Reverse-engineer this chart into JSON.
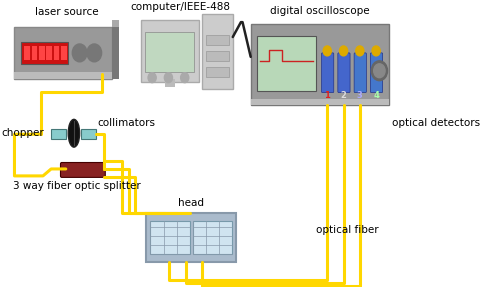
{
  "bg_color": "#ffffff",
  "fiber_color": "#FFD700",
  "fiber_lw": 2.2,
  "labels": {
    "laser_source": "laser source",
    "computer": "computer/IEEE-488",
    "oscilloscope": "digital oscilloscope",
    "chopper": "chopper",
    "collimators": "collimators",
    "splitter": "3 way fiber optic splitter",
    "head": "head",
    "optical_detectors": "optical detectors",
    "optical_fiber": "optical fiber"
  },
  "font_size": 7.5
}
